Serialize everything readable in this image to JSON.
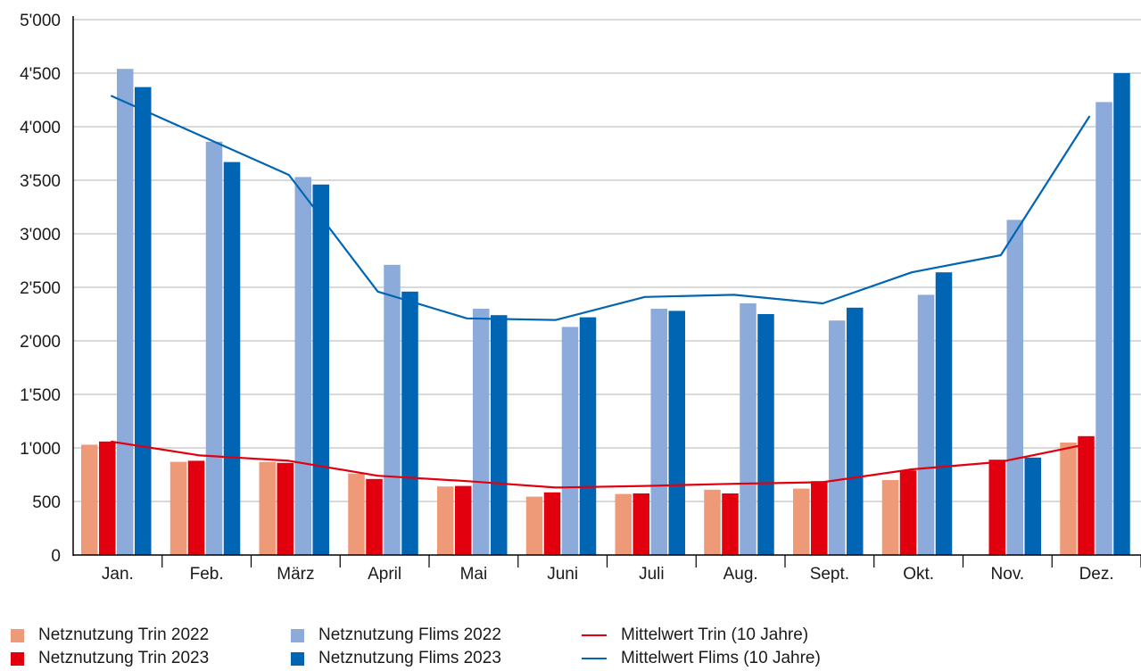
{
  "chart_data": {
    "type": "bar",
    "title": "",
    "xlabel": "",
    "ylabel": "",
    "ylim": [
      0,
      5000
    ],
    "yticks": [
      0,
      500,
      1000,
      1500,
      2000,
      2500,
      3000,
      3500,
      4000,
      4500,
      5000
    ],
    "ytick_labels": [
      "0",
      "500",
      "1'000",
      "1'500",
      "2'000",
      "2'500",
      "3'000",
      "3'500",
      "4'000",
      "4'500",
      "5'000"
    ],
    "grid": true,
    "legend_position": "bottom",
    "categories": [
      "Jan.",
      "Feb.",
      "März",
      "April",
      "Mai",
      "Juni",
      "Juli",
      "Aug.",
      "Sept.",
      "Okt.",
      "Nov.",
      "Dez."
    ],
    "series": [
      {
        "name": "Netznutzung Trin 2022",
        "kind": "bar",
        "color": "#EE9977",
        "values": [
          1030,
          870,
          870,
          760,
          640,
          545,
          570,
          610,
          620,
          700,
          null,
          1050
        ]
      },
      {
        "name": "Netznutzung Trin 2023",
        "kind": "bar",
        "color": "#E2000F",
        "values": [
          1060,
          880,
          860,
          710,
          645,
          585,
          575,
          575,
          690,
          790,
          890,
          1110
        ]
      },
      {
        "name": "Netznutzung Flims 2022",
        "kind": "bar",
        "color": "#8DABDA",
        "values": [
          4540,
          3860,
          3530,
          2710,
          2300,
          2130,
          2300,
          2350,
          2190,
          2430,
          3130,
          4230
        ]
      },
      {
        "name": "Netznutzung Flims 2023",
        "kind": "bar",
        "color": "#0066B3",
        "values": [
          4370,
          3670,
          3460,
          2460,
          2240,
          2220,
          2280,
          2250,
          2310,
          2640,
          910,
          4500
        ]
      },
      {
        "name": "Mittelwert Trin (10 Jahre)",
        "kind": "line",
        "color": "#E2000F",
        "values": [
          1060,
          930,
          880,
          740,
          690,
          630,
          645,
          665,
          680,
          800,
          870,
          1040
        ]
      },
      {
        "name": "Mittelwert Flims (10 Jahre)",
        "kind": "line",
        "color": "#0066B3",
        "values": [
          4290,
          3920,
          3550,
          2460,
          2210,
          2195,
          2410,
          2430,
          2350,
          2640,
          2800,
          4100
        ]
      }
    ]
  }
}
